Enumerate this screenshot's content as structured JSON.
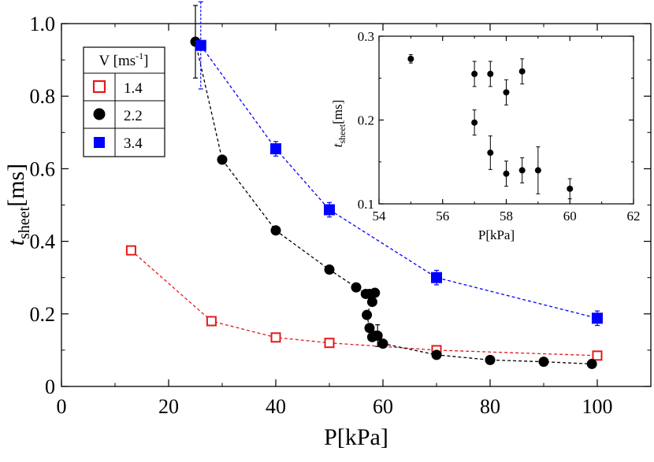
{
  "chart_data": [
    {
      "type": "scatter",
      "xlabel": "P[kPa]",
      "ylabel": "t",
      "ylabel_sub": "sheet",
      "ylabel_unit": "[ms]",
      "xlim": [
        0,
        110
      ],
      "ylim": [
        0,
        1.0
      ],
      "xticks": [
        0,
        20,
        40,
        60,
        80,
        100
      ],
      "yticks": [
        0,
        0.2,
        0.4,
        0.6,
        0.8,
        1.0
      ],
      "xtick_labels": [
        "0",
        "20",
        "40",
        "60",
        "80",
        "100"
      ],
      "ytick_labels": [
        "0",
        "0.2",
        "0.4",
        "0.6",
        "0.8",
        "1.0"
      ],
      "grid": false,
      "legend": {
        "title": "V [ms",
        "title_sup": "-1",
        "title_end": "]",
        "placement": "top-left"
      },
      "series": [
        {
          "name": "1.4",
          "color": "#e41a1c",
          "marker": "open-square",
          "line": "dashed",
          "points": [
            {
              "x": 13,
              "y": 0.375,
              "err": 0.012
            },
            {
              "x": 28,
              "y": 0.18,
              "err": 0.01
            },
            {
              "x": 40,
              "y": 0.135,
              "err": 0.01
            },
            {
              "x": 50,
              "y": 0.12,
              "err": 0.01
            },
            {
              "x": 70,
              "y": 0.1,
              "err": 0.01
            },
            {
              "x": 100,
              "y": 0.085,
              "err": 0.01
            }
          ]
        },
        {
          "name": "2.2",
          "color": "#000000",
          "marker": "filled-circle",
          "line": "dashed",
          "points": [
            {
              "x": 25,
              "y": 0.95,
              "err": 0.1
            },
            {
              "x": 30,
              "y": 0.625,
              "err": 0.0
            },
            {
              "x": 40,
              "y": 0.43,
              "err": 0.0
            },
            {
              "x": 50,
              "y": 0.322,
              "err": 0.0
            },
            {
              "x": 55,
              "y": 0.273,
              "err": 0.005
            },
            {
              "x": 56.8,
              "y": 0.255,
              "err": 0.0
            },
            {
              "x": 57.5,
              "y": 0.255,
              "err": 0.0
            },
            {
              "x": 58,
              "y": 0.233,
              "err": 0.0
            },
            {
              "x": 58.5,
              "y": 0.258,
              "err": 0.0
            },
            {
              "x": 57,
              "y": 0.197,
              "err": 0.0
            },
            {
              "x": 57.5,
              "y": 0.161,
              "err": 0.0
            },
            {
              "x": 58,
              "y": 0.136,
              "err": 0.0
            },
            {
              "x": 58.5,
              "y": 0.14,
              "err": 0.0
            },
            {
              "x": 59,
              "y": 0.14,
              "err": 0.03
            },
            {
              "x": 60,
              "y": 0.118,
              "err": 0.0
            },
            {
              "x": 70,
              "y": 0.087,
              "err": 0.0
            },
            {
              "x": 80,
              "y": 0.073,
              "err": 0.0
            },
            {
              "x": 90,
              "y": 0.068,
              "err": 0.0
            },
            {
              "x": 99,
              "y": 0.062,
              "err": 0.0
            }
          ],
          "line_order": [
            0,
            1,
            2,
            3,
            4,
            5,
            6,
            7,
            8,
            9,
            10,
            11,
            12,
            13,
            14,
            15,
            16,
            17,
            18
          ]
        },
        {
          "name": "3.4",
          "color": "#0000ff",
          "marker": "filled-square",
          "line": "dashed",
          "points": [
            {
              "x": 26,
              "y": 0.94,
              "err": 0.12
            },
            {
              "x": 40,
              "y": 0.655,
              "err": 0.02
            },
            {
              "x": 50,
              "y": 0.487,
              "err": 0.02
            },
            {
              "x": 70,
              "y": 0.3,
              "err": 0.02
            },
            {
              "x": 100,
              "y": 0.188,
              "err": 0.02
            }
          ]
        }
      ]
    },
    {
      "type": "scatter",
      "xlabel": "P[kPa]",
      "ylabel": "t",
      "ylabel_sub": "sheet",
      "ylabel_unit": "[ms]",
      "xlim": [
        54,
        62
      ],
      "ylim": [
        0.1,
        0.3
      ],
      "xticks": [
        54,
        56,
        58,
        60,
        62
      ],
      "yticks": [
        0.1,
        0.2,
        0.3
      ],
      "xtick_labels": [
        "54",
        "56",
        "58",
        "60",
        "62"
      ],
      "ytick_labels": [
        "0.1",
        "0.2",
        "0.3"
      ],
      "grid": false,
      "series": [
        {
          "color": "#000000",
          "marker": "filled-circle",
          "points": [
            {
              "x": 55,
              "y": 0.273,
              "err": 0.005
            },
            {
              "x": 57,
              "y": 0.255,
              "err": 0.015
            },
            {
              "x": 57.5,
              "y": 0.255,
              "err": 0.015
            },
            {
              "x": 58,
              "y": 0.233,
              "err": 0.015
            },
            {
              "x": 58.5,
              "y": 0.258,
              "err": 0.015
            },
            {
              "x": 57,
              "y": 0.197,
              "err": 0.015
            },
            {
              "x": 57.5,
              "y": 0.161,
              "err": 0.02
            },
            {
              "x": 58,
              "y": 0.136,
              "err": 0.015
            },
            {
              "x": 58.5,
              "y": 0.14,
              "err": 0.015
            },
            {
              "x": 59,
              "y": 0.14,
              "err": 0.028
            },
            {
              "x": 60,
              "y": 0.118,
              "err": 0.012
            }
          ]
        }
      ]
    }
  ]
}
